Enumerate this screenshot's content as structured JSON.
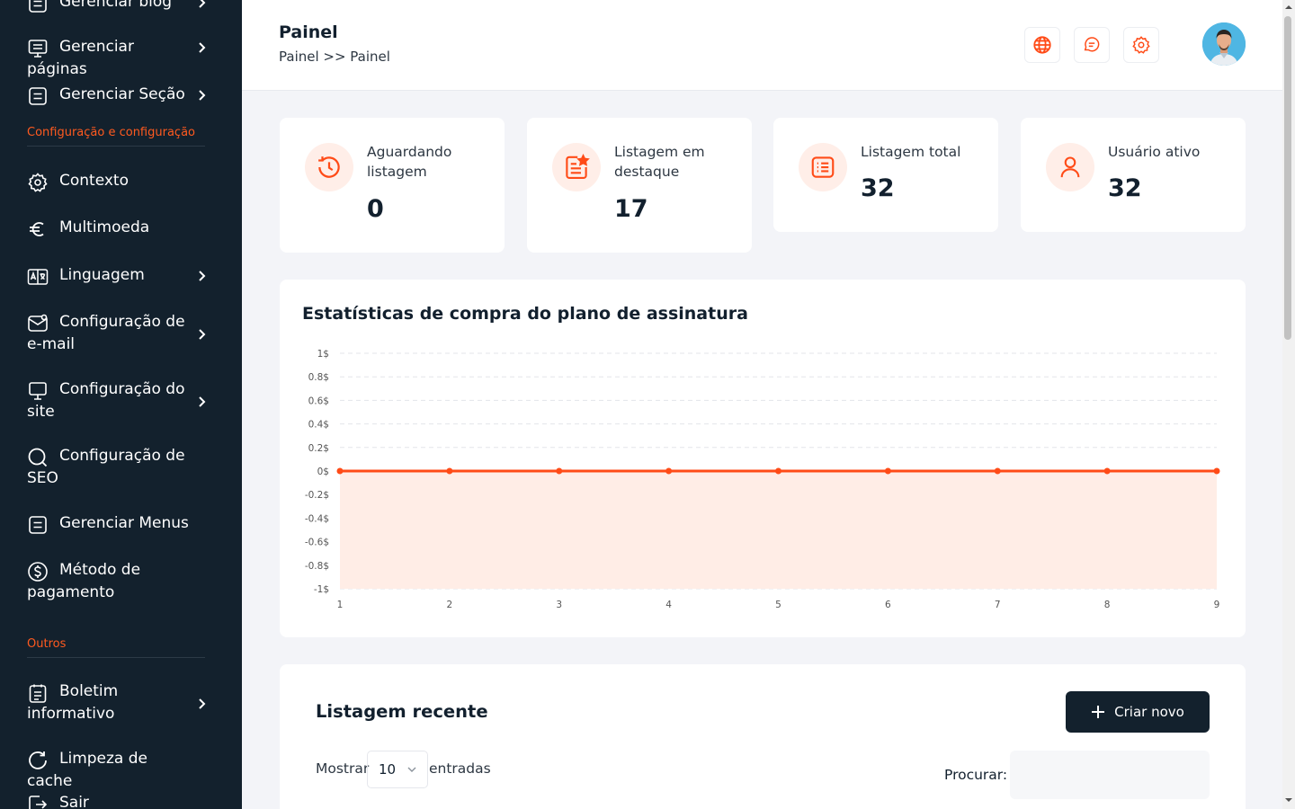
{
  "sidebar": {
    "items": [
      {
        "label": "Gerenciar blog",
        "icon": "document-icon",
        "chevron": true
      },
      {
        "label": "Gerenciar páginas",
        "icon": "monitor-icon",
        "chevron": true
      },
      {
        "label": "Gerenciar Seção",
        "icon": "document-icon",
        "chevron": true
      },
      {
        "label": "Contexto",
        "icon": "gear-icon",
        "chevron": false
      },
      {
        "label": "Multimoeda",
        "icon": "euro-icon",
        "chevron": false
      },
      {
        "label": "Linguagem",
        "icon": "translate-icon",
        "chevron": true
      },
      {
        "label": "Configuração de e-mail",
        "icon": "mail-icon",
        "chevron": true
      },
      {
        "label": "Configuração do site",
        "icon": "monitor-icon",
        "chevron": true
      },
      {
        "label": "Configuração de SEO",
        "icon": "search-icon",
        "chevron": false
      },
      {
        "label": "Gerenciar Menus",
        "icon": "document-icon",
        "chevron": false
      },
      {
        "label": "Método de pagamento",
        "icon": "dollar-icon",
        "chevron": false
      },
      {
        "label": "Boletim informativo",
        "icon": "clipboard-icon",
        "chevron": true
      },
      {
        "label": "Limpeza de cache",
        "icon": "refresh-icon",
        "chevron": false
      },
      {
        "label": "Sair",
        "icon": "logout-icon",
        "chevron": false
      }
    ],
    "sections": [
      "Configuração e configuração",
      "Outros"
    ]
  },
  "header": {
    "title": "Painel",
    "breadcrumb": "Painel >> Painel",
    "icons": [
      "globe-icon",
      "chat-icon",
      "settings-icon"
    ]
  },
  "stats": [
    {
      "label": "Aguardando listagem",
      "value": "0",
      "icon": "clock-history-icon"
    },
    {
      "label": "Listagem em destaque",
      "value": "17",
      "icon": "featured-list-icon"
    },
    {
      "label": "Listagem total",
      "value": "32",
      "icon": "list-icon"
    },
    {
      "label": "Usuário ativo",
      "value": "32",
      "icon": "user-icon"
    }
  ],
  "chart": {
    "title": "Estatísticas de compra do plano de assinatura"
  },
  "chart_data": {
    "type": "area",
    "x": [
      1,
      2,
      3,
      4,
      5,
      6,
      7,
      8,
      9
    ],
    "values": [
      0,
      0,
      0,
      0,
      0,
      0,
      0,
      0,
      0
    ],
    "ylim": [
      -1,
      1
    ],
    "yticks": [
      "1$",
      "0.8$",
      "0.6$",
      "0.4$",
      "0.2$",
      "0$",
      "-0.2$",
      "-0.4$",
      "-0.6$",
      "-0.8$",
      "-1$"
    ],
    "ytick_values": [
      1,
      0.8,
      0.6,
      0.4,
      0.2,
      0,
      -0.2,
      -0.4,
      -0.6,
      -0.8,
      -1
    ],
    "xticks": [
      "1",
      "2",
      "3",
      "4",
      "5",
      "6",
      "7",
      "8",
      "9"
    ],
    "grid": true,
    "line_color": "#ff4b17",
    "fill_color": "#ffede6"
  },
  "recent": {
    "title": "Listagem recente",
    "create_label": "Criar novo",
    "show_label": "Mostrar",
    "show_value": "10",
    "entries_label": "entradas",
    "search_label": "Procurar:",
    "search_value": ""
  },
  "colors": {
    "accent": "#ff5a1f",
    "sidebar_bg": "#13212d",
    "icon_bg": "#ffeee8"
  }
}
